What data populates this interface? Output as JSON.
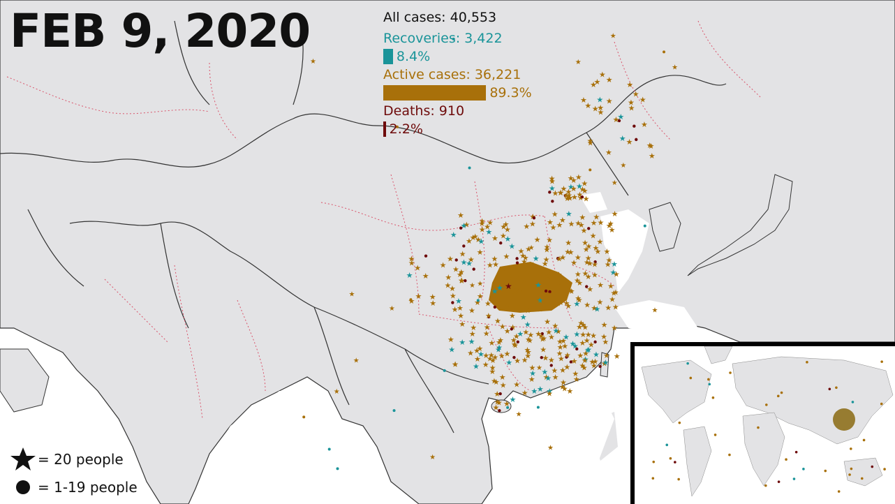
{
  "date": "FEB 9, 2020",
  "stats": {
    "all_cases": "All cases: 40,553",
    "recoveries": "Recoveries: 3,422",
    "recoveries_pct": "8.4%",
    "recoveries_fraction": 0.084,
    "active": "Active cases: 36,221",
    "active_pct": "89.3%",
    "active_fraction": 0.893,
    "deaths": "Deaths: 910",
    "deaths_pct": "2.2%",
    "deaths_fraction": 0.022
  },
  "legend": {
    "star_label": "= 20 people",
    "dot_label": "= 1-19 people"
  },
  "colors": {
    "recovered": "#1a9499",
    "active": "#a8700a",
    "deaths": "#6e0b0b",
    "land": "#e3e3e5",
    "water": "#ffffff",
    "country_border": "#333333",
    "province_border": "#d9536a"
  }
}
